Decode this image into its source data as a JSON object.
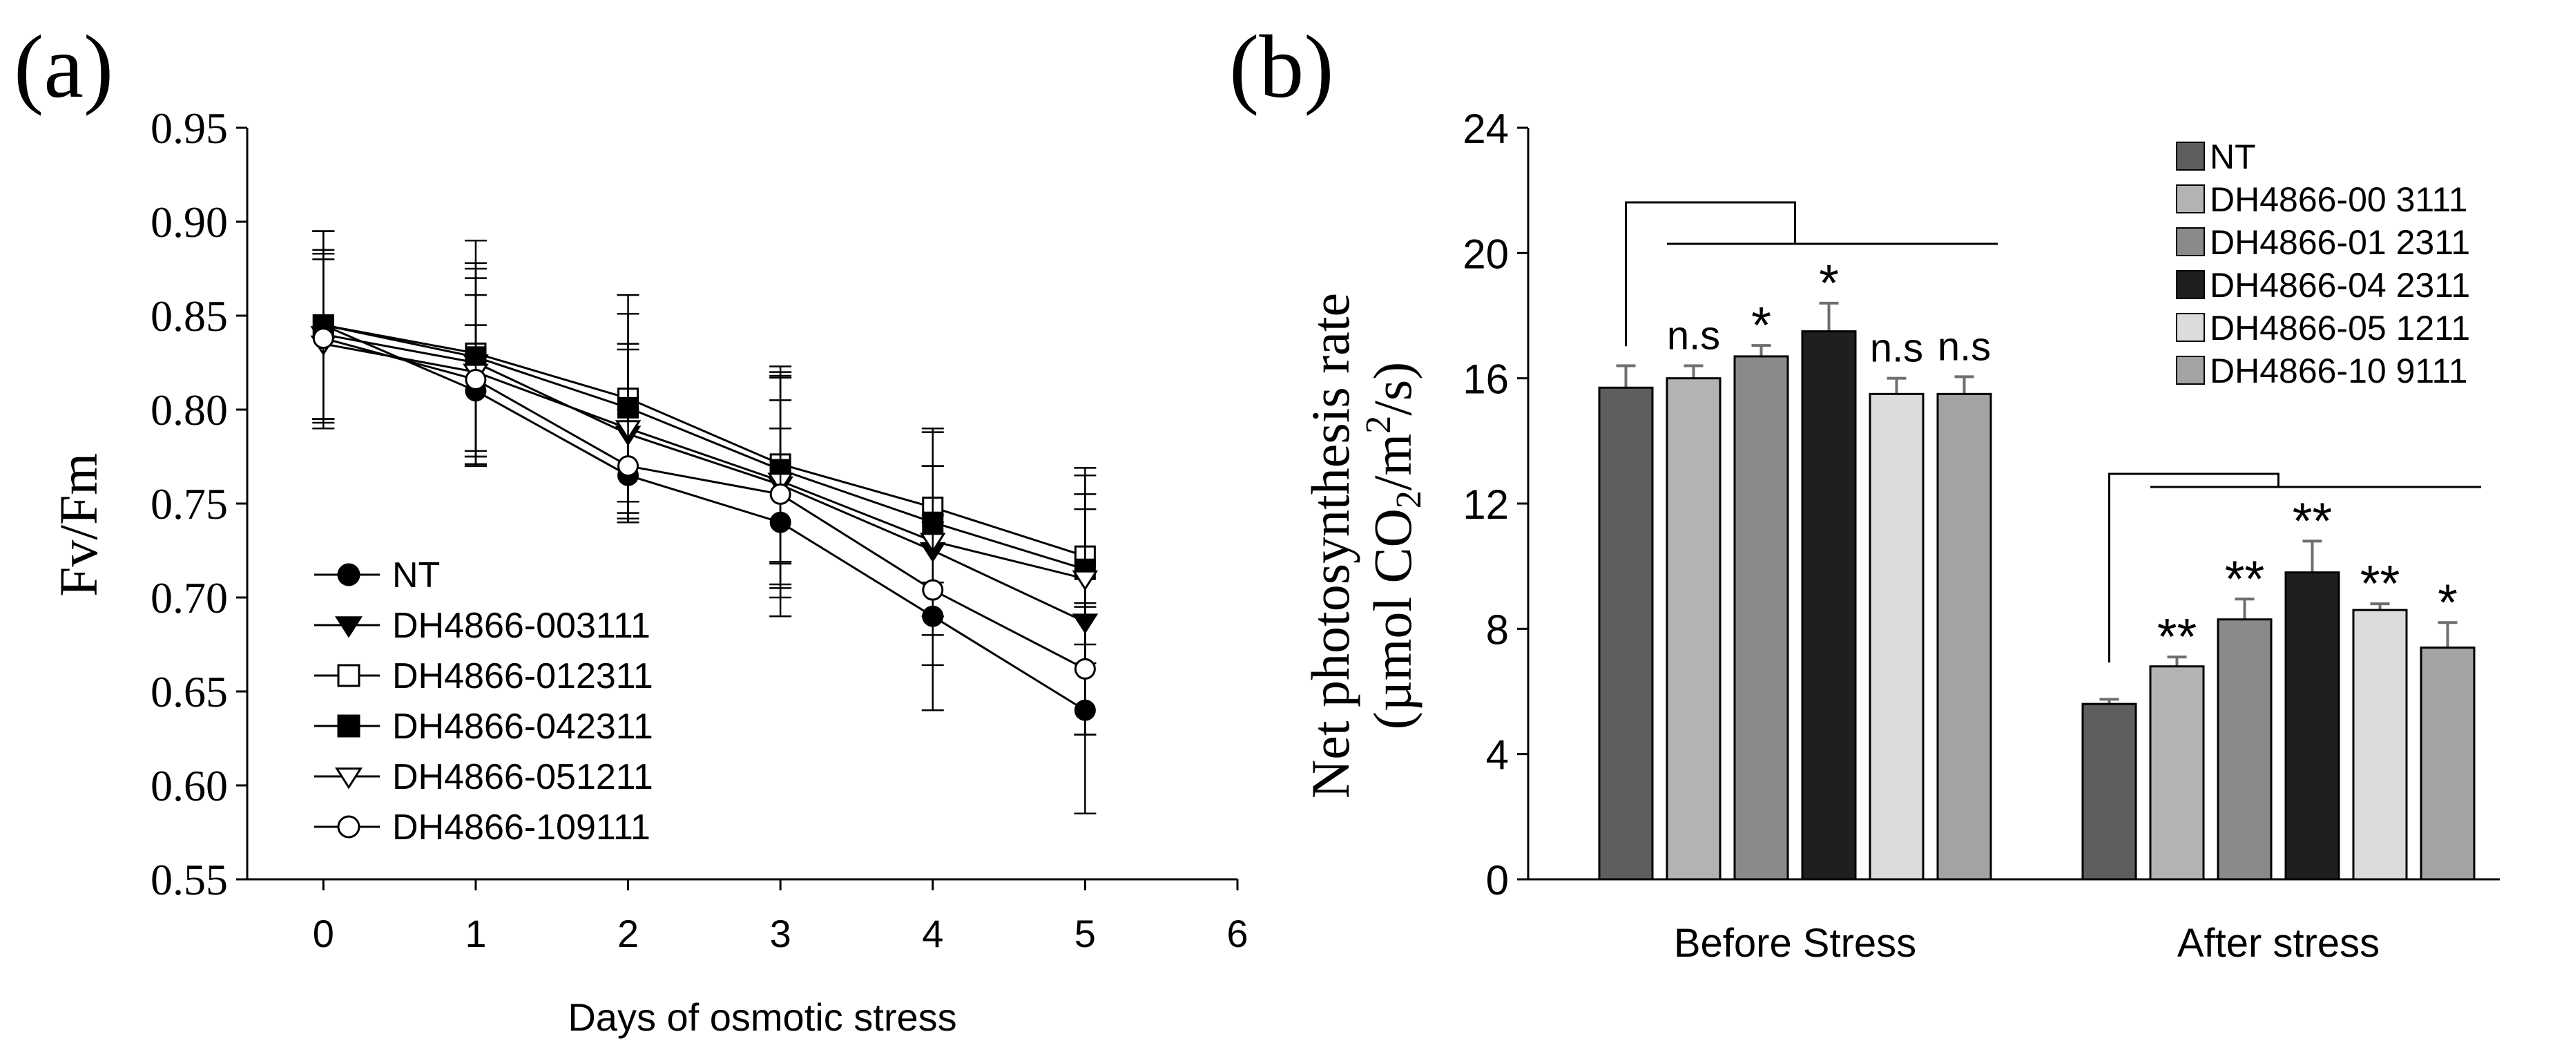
{
  "chart_data": [
    {
      "panel_label": "(a)",
      "type": "line",
      "xlabel": "Days of osmotic stress",
      "ylabel": "Fv/Fm",
      "xlim": [
        -0.5,
        6
      ],
      "ylim": [
        0.55,
        0.95
      ],
      "xticks": [
        "0",
        "1",
        "2",
        "3",
        "4",
        "5",
        "6"
      ],
      "yticks": [
        "0.55",
        "0.60",
        "0.65",
        "0.70",
        "0.75",
        "0.80",
        "0.85",
        "0.90",
        "0.95"
      ],
      "grid": false,
      "legend_position": "bottom-left",
      "x": [
        0,
        1,
        2,
        3,
        4,
        5
      ],
      "series": [
        {
          "name": "NT",
          "marker": "filled-circle",
          "values": [
            0.845,
            0.81,
            0.765,
            0.74,
            0.69,
            0.64
          ],
          "errors": [
            0.05,
            0.035,
            0.025,
            0.05,
            0.05,
            0.055
          ]
        },
        {
          "name": "DH4866-003111",
          "marker": "filled-triangle-down",
          "values": [
            0.84,
            0.825,
            0.787,
            0.76,
            0.725,
            0.687
          ],
          "errors": [
            0.045,
            0.05,
            0.045,
            0.06,
            0.045,
            0.06
          ]
        },
        {
          "name": "DH4866-012311",
          "marker": "open-square",
          "values": [
            0.845,
            0.83,
            0.806,
            0.771,
            0.748,
            0.722
          ],
          "errors": [
            0.05,
            0.06,
            0.055,
            0.052,
            0.04,
            0.047
          ]
        },
        {
          "name": "DH4866-042311",
          "marker": "filled-square",
          "values": [
            0.845,
            0.828,
            0.801,
            0.768,
            0.74,
            0.715
          ],
          "errors": [
            0.05,
            0.05,
            0.05,
            0.05,
            0.05,
            0.05
          ]
        },
        {
          "name": "DH4866-051211",
          "marker": "open-triangle-down",
          "values": [
            0.835,
            0.82,
            0.79,
            0.762,
            0.73,
            0.71
          ],
          "errors": [
            0.045,
            0.05,
            0.045,
            0.055,
            0.04,
            0.045
          ]
        },
        {
          "name": "DH4866-109111",
          "marker": "open-circle",
          "values": [
            0.838,
            0.816,
            0.77,
            0.755,
            0.704,
            0.662
          ],
          "errors": [
            0.045,
            0.045,
            0.03,
            0.05,
            0.04,
            0.035
          ]
        }
      ]
    },
    {
      "panel_label": "(b)",
      "type": "bar",
      "xlabel": "",
      "ylabel": "Net photosynthesis rate",
      "ylabel_unit_parts": [
        "(µmol CO",
        "2",
        "/m",
        "2",
        "/s)"
      ],
      "categories": [
        "Before Stress",
        "After stress"
      ],
      "ylim": [
        0,
        24
      ],
      "yticks": [
        "0",
        "4",
        "8",
        "12",
        "16",
        "20",
        "24"
      ],
      "grid": false,
      "legend_position": "top-right",
      "series": [
        {
          "name": "NT",
          "color": "#5e5e5e",
          "values": [
            15.7,
            5.6
          ],
          "errors": [
            0.7,
            0.15
          ],
          "significance": [
            "",
            ""
          ]
        },
        {
          "name": "DH4866-00 3111",
          "color": "#b3b3b3",
          "values": [
            16.0,
            6.8
          ],
          "errors": [
            0.4,
            0.3
          ],
          "significance": [
            "n.s",
            "**"
          ]
        },
        {
          "name": "DH4866-01 2311",
          "color": "#8a8a8a",
          "values": [
            16.7,
            8.3
          ],
          "errors": [
            0.35,
            0.65
          ],
          "significance": [
            "*",
            "**"
          ]
        },
        {
          "name": "DH4866-04 2311",
          "color": "#1f1f1f",
          "values": [
            17.5,
            9.8
          ],
          "errors": [
            0.9,
            1.0
          ],
          "significance": [
            "*",
            "**"
          ]
        },
        {
          "name": "DH4866-05 1211",
          "color": "#dcdcdc",
          "values": [
            15.5,
            8.6
          ],
          "errors": [
            0.5,
            0.2
          ],
          "significance": [
            "n.s",
            "**"
          ]
        },
        {
          "name": "DH4866-10 9111",
          "color": "#a3a3a3",
          "values": [
            15.5,
            7.4
          ],
          "errors": [
            0.55,
            0.8
          ],
          "significance": [
            "n.s",
            "*"
          ]
        }
      ]
    }
  ]
}
